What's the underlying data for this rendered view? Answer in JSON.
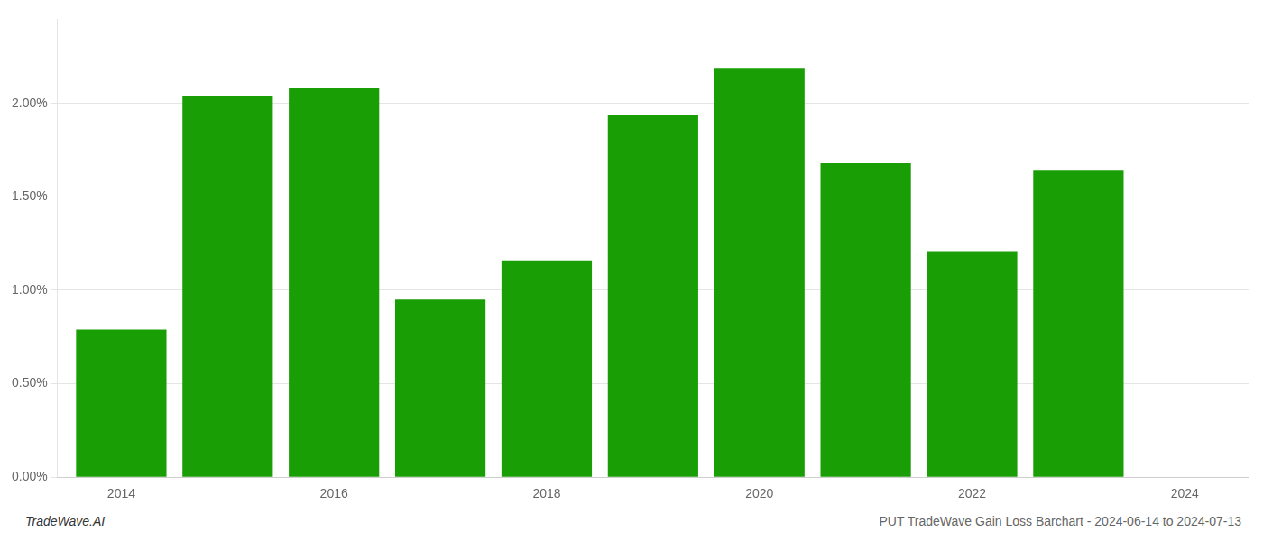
{
  "chart_data": {
    "type": "bar",
    "x": [
      2014,
      2015,
      2016,
      2017,
      2018,
      2019,
      2020,
      2021,
      2022,
      2023
    ],
    "values": [
      0.0079,
      0.0204,
      0.0208,
      0.0095,
      0.0116,
      0.0194,
      0.0219,
      0.0168,
      0.0121,
      0.0164
    ],
    "color": "#1a9e06",
    "xlim": [
      2013.4,
      2024.6
    ],
    "xticks": [
      2014,
      2016,
      2018,
      2020,
      2022,
      2024
    ],
    "ylim": [
      0,
      0.0245
    ],
    "yticks": [
      {
        "value": 0.0,
        "label": "0.00%"
      },
      {
        "value": 0.005,
        "label": "0.50%"
      },
      {
        "value": 0.01,
        "label": "1.00%"
      },
      {
        "value": 0.015,
        "label": "1.50%"
      },
      {
        "value": 0.02,
        "label": "2.00%"
      }
    ],
    "grid": true,
    "annotations": [
      "TradeWave.AI",
      "PUT TradeWave Gain Loss Barchart - 2024-06-14 to 2024-07-13"
    ]
  }
}
